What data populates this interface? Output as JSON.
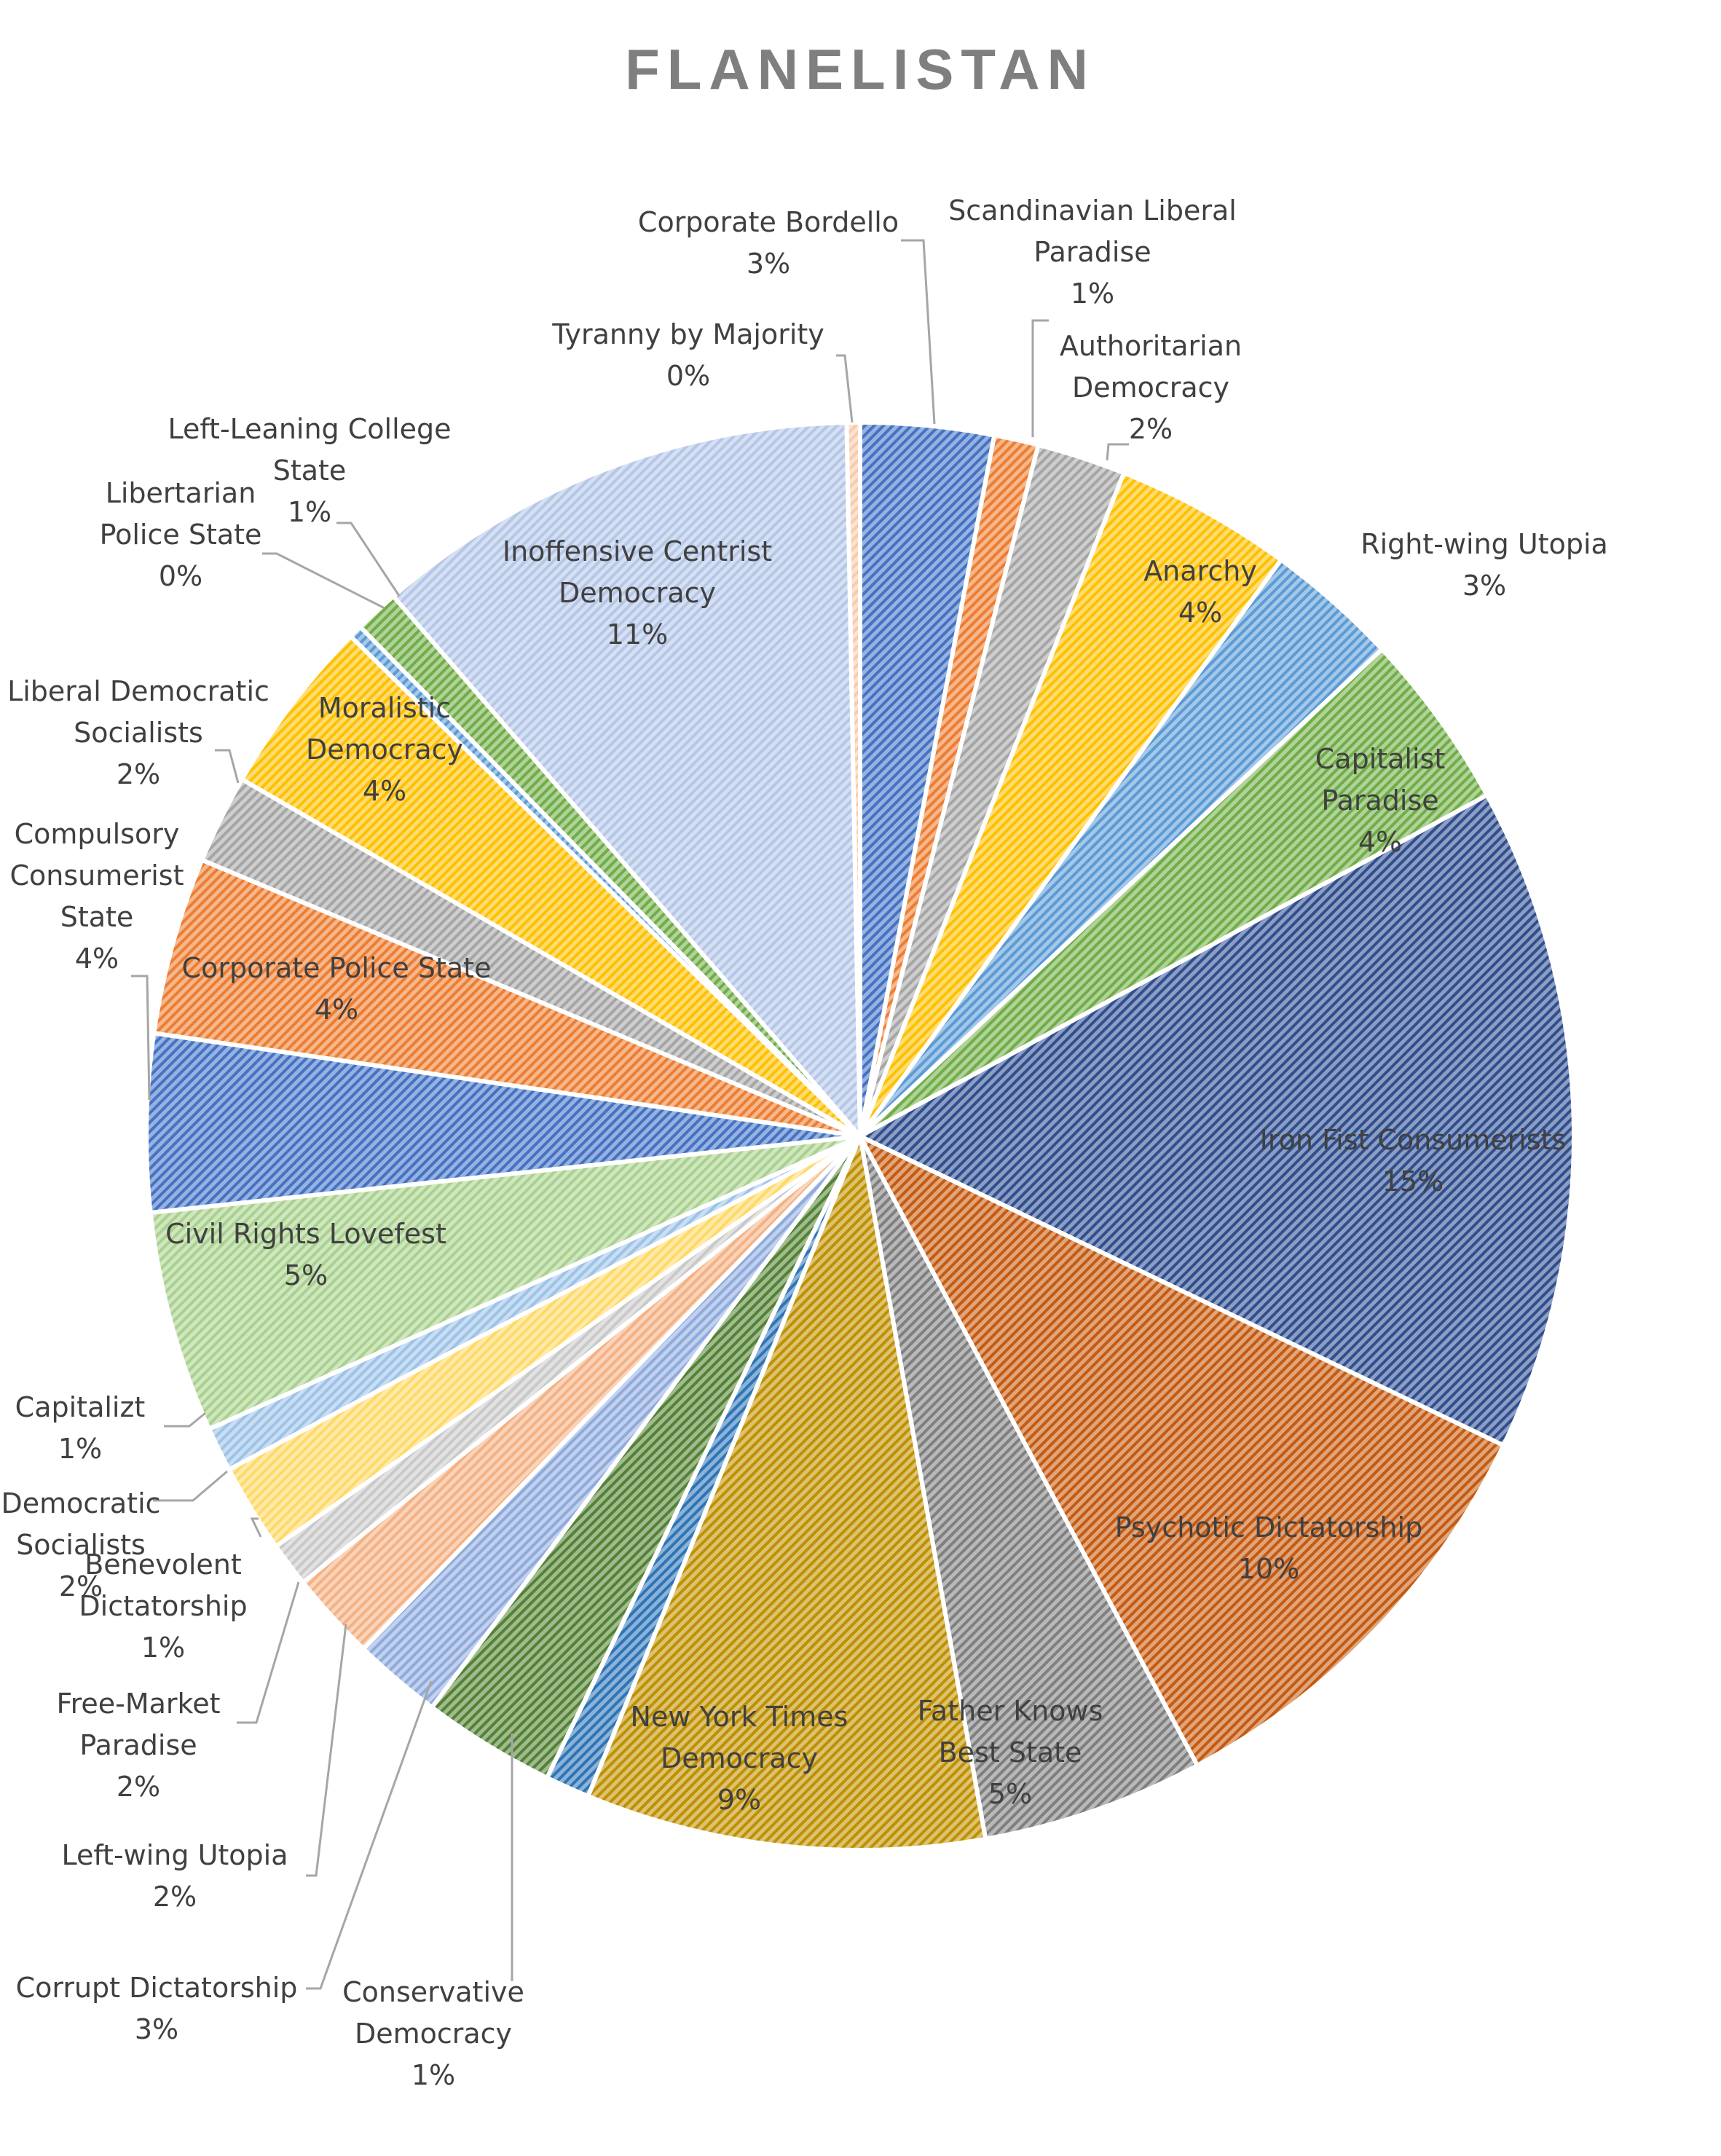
{
  "chart_data": {
    "type": "pie",
    "title": "FLANELISTAN",
    "pattern": "diagonal hatch",
    "series": [
      {
        "name": "Corporate Bordello",
        "value": 3,
        "label": "3%",
        "color": "#4472c4"
      },
      {
        "name": "Scandinavian Liberal Paradise",
        "value": 1,
        "label": "1%",
        "color": "#ed7d31"
      },
      {
        "name": "Authoritarian Democracy",
        "value": 2,
        "label": "2%",
        "color": "#a5a5a5"
      },
      {
        "name": "Anarchy",
        "value": 4,
        "label": "4%",
        "color": "#ffc000"
      },
      {
        "name": "Right-wing Utopia",
        "value": 3,
        "label": "3%",
        "color": "#5b9bd5"
      },
      {
        "name": "Capitalist Paradise",
        "value": 4,
        "label": "4%",
        "color": "#70ad47"
      },
      {
        "name": "Iron Fist Consumerists",
        "value": 15,
        "label": "15%",
        "color": "#2f4f8f"
      },
      {
        "name": "Psychotic Dictatorship",
        "value": 10,
        "label": "10%",
        "color": "#c55a11"
      },
      {
        "name": "Father Knows Best State",
        "value": 5,
        "label": "5%",
        "color": "#7f7f7f"
      },
      {
        "name": "New York Times Democracy",
        "value": 9,
        "label": "9%",
        "color": "#bf9000"
      },
      {
        "name": "Conservative Democracy",
        "value": 1,
        "label": "1%",
        "color": "#2e75b6"
      },
      {
        "name": "Corrupt Dictatorship",
        "value": 3,
        "label": "3%",
        "color": "#548235"
      },
      {
        "name": "Left-wing Utopia",
        "value": 2,
        "label": "2%",
        "color": "#8faadc"
      },
      {
        "name": "Free-Market Paradise",
        "value": 2,
        "label": "2%",
        "color": "#f4b183"
      },
      {
        "name": "Benevolent Dictatorship",
        "value": 1,
        "label": "1%",
        "color": "#c9c9c9"
      },
      {
        "name": "Democratic Socialists",
        "value": 2,
        "label": "2%",
        "color": "#ffd966"
      },
      {
        "name": "Capitalizt",
        "value": 1,
        "label": "1%",
        "color": "#9dc3e6"
      },
      {
        "name": "Civil Rights Lovefest",
        "value": 5,
        "label": "5%",
        "color": "#a9d18e"
      },
      {
        "name": "Compulsory Consumerist State",
        "value": 4,
        "label": "4%",
        "color": "#4472c4"
      },
      {
        "name": "Corporate Police State",
        "value": 4,
        "label": "4%",
        "color": "#ed7d31"
      },
      {
        "name": "Liberal Democratic Socialists",
        "value": 2,
        "label": "2%",
        "color": "#a5a5a5"
      },
      {
        "name": "Moralistic Democracy",
        "value": 4,
        "label": "4%",
        "color": "#ffc000"
      },
      {
        "name": "Libertarian Police State",
        "value": 0.3,
        "label": "0%",
        "color": "#5b9bd5"
      },
      {
        "name": "Left-Leaning College State",
        "value": 1,
        "label": "1%",
        "color": "#70ad47"
      },
      {
        "name": "Inoffensive Centrist Democracy",
        "value": 11,
        "label": "11%",
        "color": "#b4c7e7"
      },
      {
        "name": "Tyranny by Majority",
        "value": 0.3,
        "label": "0%",
        "color": "#f8cbad"
      }
    ]
  },
  "labels": [
    {
      "lines": [
        "Corporate Bordello",
        "3%"
      ]
    },
    {
      "lines": [
        "Scandinavian Liberal",
        "Paradise",
        "1%"
      ]
    },
    {
      "lines": [
        "Authoritarian",
        "Democracy",
        "2%"
      ]
    },
    {
      "lines": [
        "Anarchy",
        "4%"
      ]
    },
    {
      "lines": [
        "Right-wing Utopia",
        "3%"
      ]
    },
    {
      "lines": [
        "Capitalist",
        "Paradise",
        "4%"
      ]
    },
    {
      "lines": [
        "Iron Fist Consumerists",
        "15%"
      ]
    },
    {
      "lines": [
        "Psychotic Dictatorship",
        "10%"
      ]
    },
    {
      "lines": [
        "Father Knows",
        "Best State",
        "5%"
      ]
    },
    {
      "lines": [
        "New York Times",
        "Democracy",
        "9%"
      ]
    },
    {
      "lines": [
        "Conservative",
        "Democracy",
        "1%"
      ]
    },
    {
      "lines": [
        "Corrupt Dictatorship",
        "3%"
      ]
    },
    {
      "lines": [
        "Left-wing Utopia",
        "2%"
      ]
    },
    {
      "lines": [
        "Free-Market",
        "Paradise",
        "2%"
      ]
    },
    {
      "lines": [
        "Benevolent",
        "Dictatorship",
        "1%"
      ]
    },
    {
      "lines": [
        "Democratic",
        "Socialists",
        "2%"
      ]
    },
    {
      "lines": [
        "Capitalizt",
        "1%"
      ]
    },
    {
      "lines": [
        "Civil Rights Lovefest",
        "5%"
      ]
    },
    {
      "lines": [
        "Compulsory",
        "Consumerist",
        "State",
        "4%"
      ]
    },
    {
      "lines": [
        "Corporate Police State",
        "4%"
      ]
    },
    {
      "lines": [
        "Liberal Democratic",
        "Socialists",
        "2%"
      ]
    },
    {
      "lines": [
        "Moralistic",
        "Democracy",
        "4%"
      ]
    },
    {
      "lines": [
        "Libertarian",
        "Police State",
        "0%"
      ]
    },
    {
      "lines": [
        "Left-Leaning College",
        "State",
        "1%"
      ]
    },
    {
      "lines": [
        "Inoffensive Centrist",
        "Democracy",
        "11%"
      ]
    },
    {
      "lines": [
        "Tyranny by Majority",
        "0%"
      ]
    }
  ]
}
